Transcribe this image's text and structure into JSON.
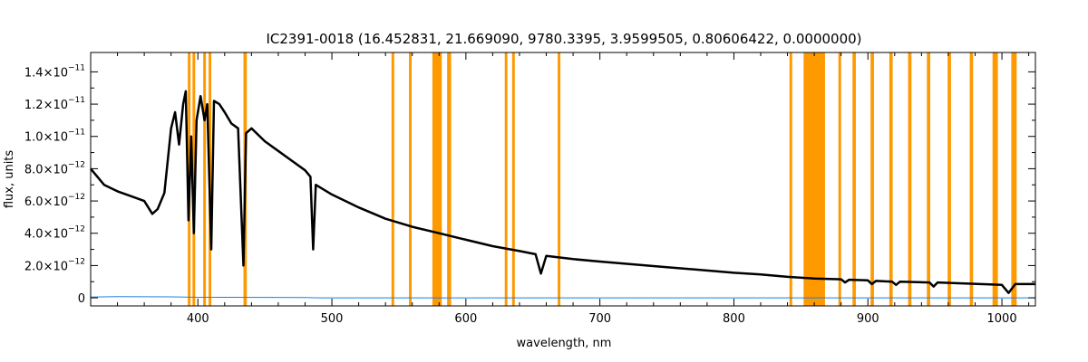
{
  "chart_data": {
    "type": "line",
    "title": "IC2391-0018   (16.452831, 21.669090, 9780.3395, 3.9599505, 0.80606422, 0.0000000)",
    "xlabel": "wavelength, nm",
    "ylabel": "flux, units",
    "xlim": [
      320,
      1025
    ],
    "ylim": [
      -5e-13,
      1.52e-11
    ],
    "x_ticks": [
      {
        "value": 400,
        "label": "400"
      },
      {
        "value": 500,
        "label": "500"
      },
      {
        "value": 600,
        "label": "600"
      },
      {
        "value": 700,
        "label": "700"
      },
      {
        "value": 800,
        "label": "800"
      },
      {
        "value": 900,
        "label": "900"
      },
      {
        "value": 1000,
        "label": "1000"
      }
    ],
    "y_ticks": [
      {
        "value": 0,
        "mant": "0",
        "exp": ""
      },
      {
        "value": 2e-12,
        "mant": "2.0×10",
        "exp": "−12"
      },
      {
        "value": 4e-12,
        "mant": "4.0×10",
        "exp": "−12"
      },
      {
        "value": 6e-12,
        "mant": "6.0×10",
        "exp": "−12"
      },
      {
        "value": 8e-12,
        "mant": "8.0×10",
        "exp": "−12"
      },
      {
        "value": 1e-11,
        "mant": "1.0×10",
        "exp": "−11"
      },
      {
        "value": 1.2e-11,
        "mant": "1.2×10",
        "exp": "−11"
      },
      {
        "value": 1.4e-11,
        "mant": "1.4×10",
        "exp": "−11"
      }
    ],
    "colors": {
      "spectrum": "#000000",
      "error": "#1f7fe0",
      "masked": "#ff9900"
    },
    "masked_ranges": [
      [
        392.5,
        394.5
      ],
      [
        396.0,
        398.0
      ],
      [
        404.0,
        406.0
      ],
      [
        408.0,
        410.0
      ],
      [
        434.0,
        436.5
      ],
      [
        544.5,
        546.5
      ],
      [
        557.5,
        559.5
      ],
      [
        575.0,
        582.0
      ],
      [
        586.0,
        589.0
      ],
      [
        629.0,
        631.0
      ],
      [
        634.5,
        636.5
      ],
      [
        668.5,
        670.5
      ],
      [
        841.5,
        843.5
      ],
      [
        852.0,
        868.0
      ],
      [
        878.0,
        880.0
      ],
      [
        888.5,
        891.0
      ],
      [
        902.0,
        904.5
      ],
      [
        916.0,
        918.5
      ],
      [
        930.0,
        932.5
      ],
      [
        944.0,
        946.5
      ],
      [
        959.5,
        962.0
      ],
      [
        976.0,
        978.5
      ],
      [
        993.0,
        997.0
      ],
      [
        1007.0,
        1011.0
      ]
    ],
    "series": [
      {
        "role": "flux",
        "points": [
          [
            320,
            8e-12
          ],
          [
            330,
            7e-12
          ],
          [
            340,
            6.6e-12
          ],
          [
            350,
            6.3e-12
          ],
          [
            360,
            6e-12
          ],
          [
            366,
            5.2e-12
          ],
          [
            370,
            5.5e-12
          ],
          [
            375,
            6.5e-12
          ],
          [
            380,
            1.05e-11
          ],
          [
            383,
            1.15e-11
          ],
          [
            386,
            9.5e-12
          ],
          [
            389,
            1.2e-11
          ],
          [
            391,
            1.28e-11
          ],
          [
            393,
            4.8e-12
          ],
          [
            395,
            1e-11
          ],
          [
            397,
            4e-12
          ],
          [
            399,
            1.1e-11
          ],
          [
            402,
            1.25e-11
          ],
          [
            405,
            1.1e-11
          ],
          [
            407,
            1.2e-11
          ],
          [
            410,
            3e-12
          ],
          [
            412,
            1.22e-11
          ],
          [
            416,
            1.2e-11
          ],
          [
            420,
            1.15e-11
          ],
          [
            425,
            1.08e-11
          ],
          [
            430,
            1.05e-11
          ],
          [
            434,
            2e-12
          ],
          [
            436,
            1.02e-11
          ],
          [
            440,
            1.05e-11
          ],
          [
            450,
            9.7e-12
          ],
          [
            460,
            9.1e-12
          ],
          [
            470,
            8.5e-12
          ],
          [
            480,
            7.9e-12
          ],
          [
            484,
            7.5e-12
          ],
          [
            486,
            3e-12
          ],
          [
            488,
            7e-12
          ],
          [
            500,
            6.4e-12
          ],
          [
            520,
            5.6e-12
          ],
          [
            540,
            4.9e-12
          ],
          [
            560,
            4.4e-12
          ],
          [
            580,
            4e-12
          ],
          [
            600,
            3.6e-12
          ],
          [
            620,
            3.2e-12
          ],
          [
            640,
            2.9e-12
          ],
          [
            652,
            2.7e-12
          ],
          [
            656,
            1.5e-12
          ],
          [
            660,
            2.6e-12
          ],
          [
            680,
            2.4e-12
          ],
          [
            700,
            2.25e-12
          ],
          [
            750,
            1.9e-12
          ],
          [
            800,
            1.55e-12
          ],
          [
            820,
            1.45e-12
          ],
          [
            840,
            1.3e-12
          ],
          [
            860,
            1.2e-12
          ],
          [
            880,
            1.15e-12
          ],
          [
            883,
            9.5e-13
          ],
          [
            886,
            1.12e-12
          ],
          [
            900,
            1.08e-12
          ],
          [
            903,
            8.5e-13
          ],
          [
            906,
            1.05e-12
          ],
          [
            918,
            1e-12
          ],
          [
            921,
            8e-13
          ],
          [
            924,
            1e-12
          ],
          [
            946,
            9.5e-13
          ],
          [
            949,
            7e-13
          ],
          [
            952,
            9.5e-13
          ],
          [
            1000,
            8e-13
          ],
          [
            1005,
            3e-13
          ],
          [
            1010,
            8.5e-13
          ],
          [
            1025,
            8.5e-13
          ]
        ]
      },
      {
        "role": "error",
        "points": [
          [
            320,
            5e-14
          ],
          [
            340,
            8e-14
          ],
          [
            380,
            6e-14
          ],
          [
            400,
            3e-14
          ],
          [
            480,
            2e-14
          ],
          [
            490,
            0.0
          ],
          [
            1025,
            0.0
          ]
        ]
      }
    ]
  }
}
